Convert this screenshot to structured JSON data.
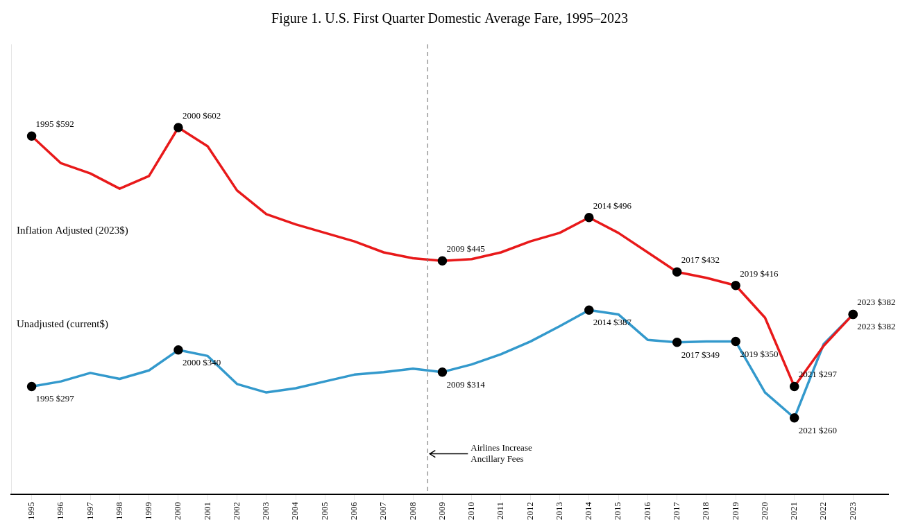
{
  "chart_data": {
    "type": "line",
    "title": "Figure 1. U.S. First Quarter Domestic Average Fare, 1995–2023",
    "x": [
      1995,
      1996,
      1997,
      1998,
      1999,
      2000,
      2001,
      2002,
      2003,
      2004,
      2005,
      2006,
      2007,
      2008,
      2009,
      2010,
      2011,
      2012,
      2013,
      2014,
      2015,
      2016,
      2017,
      2018,
      2019,
      2020,
      2021,
      2022,
      2023
    ],
    "series": [
      {
        "name": "Inflation Adjusted (2023$)",
        "color": "#e8191a",
        "marker": "circle",
        "values": [
          592,
          560,
          548,
          530,
          545,
          602,
          580,
          528,
          500,
          488,
          478,
          468,
          455,
          448,
          445,
          447,
          455,
          468,
          478,
          496,
          478,
          455,
          432,
          425,
          416,
          378,
          297,
          345,
          382
        ],
        "value_labels": [
          "1995 $592",
          null,
          null,
          null,
          null,
          "2000 $602",
          null,
          null,
          null,
          null,
          null,
          null,
          null,
          null,
          "2009 $445",
          null,
          null,
          null,
          null,
          "2014 $496",
          null,
          null,
          "2017 $432",
          null,
          "2019 $416",
          null,
          "2021 $297",
          null,
          "2023 $382"
        ]
      },
      {
        "name": "Unadjusted (current$)",
        "color": "#3399cc",
        "marker": "circle",
        "values": [
          297,
          303,
          313,
          306,
          316,
          340,
          333,
          300,
          290,
          295,
          303,
          311,
          314,
          318,
          314,
          323,
          335,
          350,
          368,
          387,
          382,
          352,
          349,
          350,
          350,
          290,
          260,
          347,
          382
        ],
        "value_labels": [
          "1995 $297",
          null,
          null,
          null,
          null,
          "2000 $340",
          null,
          null,
          null,
          null,
          null,
          null,
          null,
          null,
          "2009 $314",
          null,
          null,
          null,
          null,
          "2014 $387",
          null,
          null,
          "2017 $349",
          null,
          "2019 $350",
          null,
          "2021 $260",
          null,
          "2023 $382"
        ]
      }
    ],
    "xlim": [
      1994.3,
      2024.2
    ],
    "xticks": [
      1995,
      1996,
      1997,
      1998,
      1999,
      2000,
      2001,
      2002,
      2003,
      2004,
      2005,
      2006,
      2007,
      2008,
      2009,
      2010,
      2011,
      2012,
      2013,
      2014,
      2015,
      2016,
      2017,
      2018,
      2019,
      2020,
      2021,
      2022,
      2023
    ],
    "ylim": [
      170,
      700
    ],
    "tick_labels": "x",
    "grid": false,
    "data_labels": true,
    "annotations": [
      {
        "text": "Airlines Increase\nAncillary Fees",
        "x": 2008.5,
        "line_style": "dashed"
      }
    ]
  }
}
